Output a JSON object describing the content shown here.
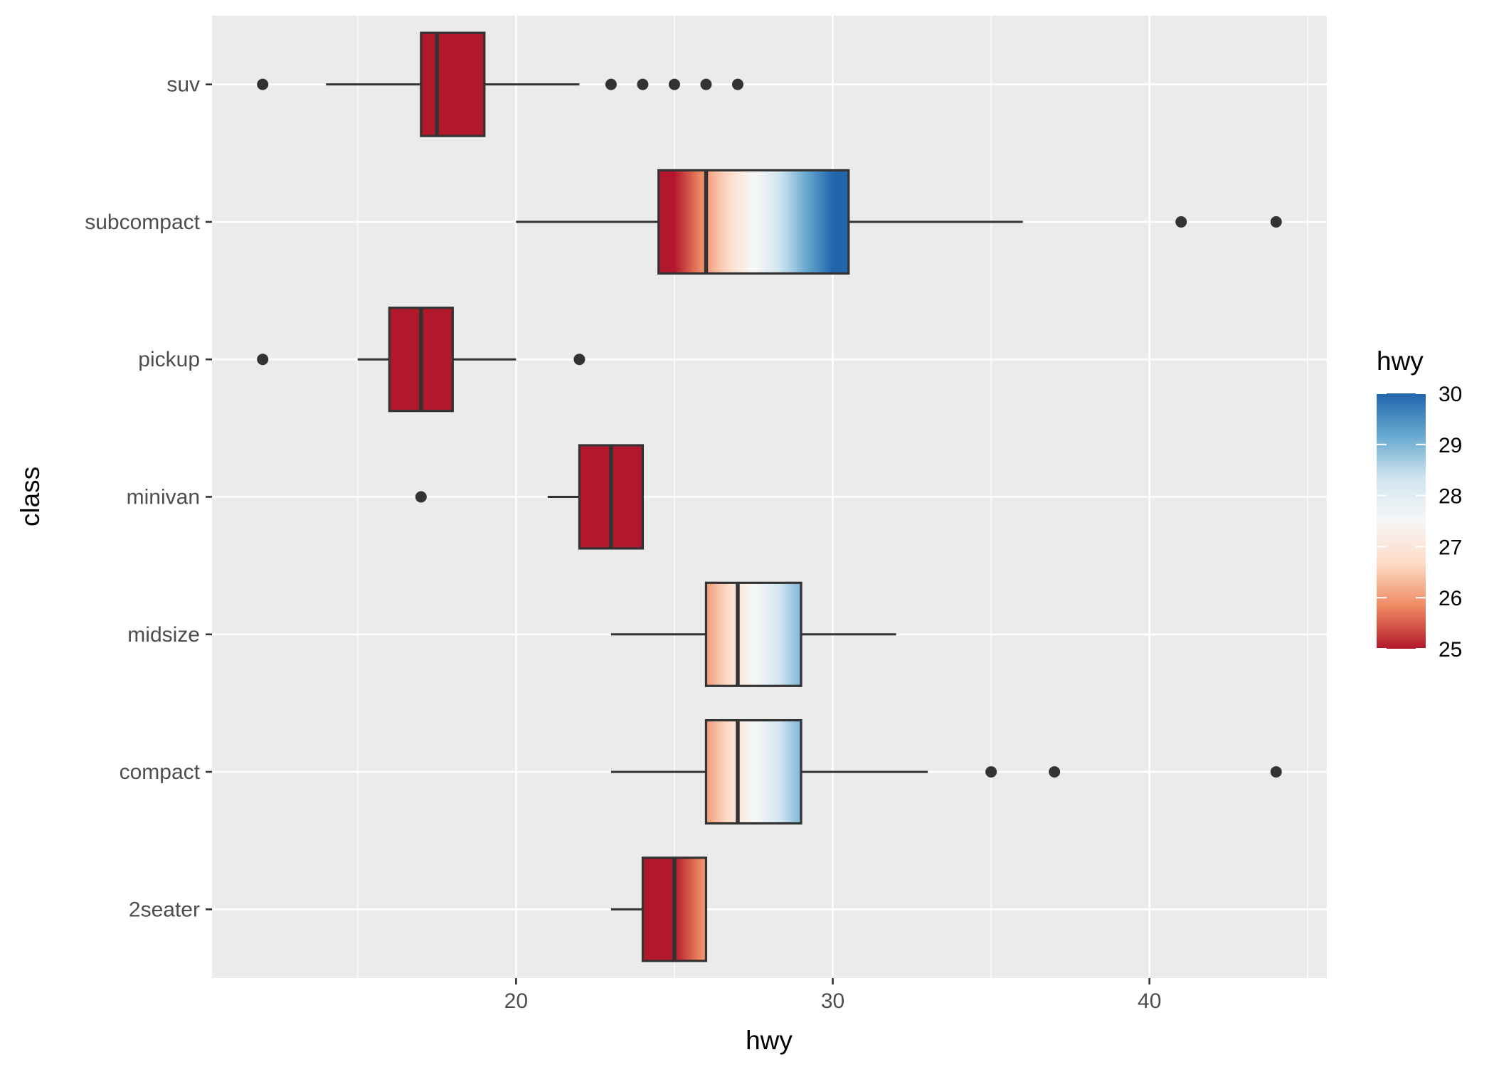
{
  "chart_data": {
    "type": "boxplot",
    "orientation": "horizontal",
    "xlabel": "hwy",
    "ylabel": "class",
    "xlim": [
      10.4,
      45.6
    ],
    "x_ticks": [
      20,
      30,
      40
    ],
    "x_tick_labels": [
      "20",
      "30",
      "40"
    ],
    "grid": true,
    "categories": [
      "2seater",
      "compact",
      "midsize",
      "minivan",
      "pickup",
      "subcompact",
      "suv"
    ],
    "boxes": [
      {
        "category": "2seater",
        "whisker_low": 23,
        "q1": 24,
        "median": 25,
        "q3": 26,
        "whisker_high": 26,
        "outliers": []
      },
      {
        "category": "compact",
        "whisker_low": 23,
        "q1": 26,
        "median": 27,
        "q3": 29,
        "whisker_high": 33,
        "outliers": [
          35,
          37,
          44
        ]
      },
      {
        "category": "midsize",
        "whisker_low": 23,
        "q1": 26,
        "median": 27,
        "q3": 29,
        "whisker_high": 32,
        "outliers": []
      },
      {
        "category": "minivan",
        "whisker_low": 21,
        "q1": 22,
        "median": 23,
        "q3": 24,
        "whisker_high": 24,
        "outliers": [
          17
        ]
      },
      {
        "category": "pickup",
        "whisker_low": 15,
        "q1": 16,
        "median": 17,
        "q3": 18,
        "whisker_high": 20,
        "outliers": [
          12,
          22
        ]
      },
      {
        "category": "subcompact",
        "whisker_low": 20,
        "q1": 24.5,
        "median": 26,
        "q3": 30.5,
        "whisker_high": 36,
        "outliers": [
          41,
          44
        ]
      },
      {
        "category": "suv",
        "whisker_low": 14,
        "q1": 17,
        "median": 17.5,
        "q3": 19,
        "whisker_high": 22,
        "outliers": [
          12,
          23,
          24,
          25,
          26,
          27
        ]
      }
    ],
    "fill": {
      "variable": "hwy",
      "gradient_by": "x",
      "low": 25,
      "high": 30,
      "oob": "squish"
    },
    "legend": {
      "title": "hwy",
      "position": "right",
      "min": 25,
      "max": 30,
      "breaks": [
        25,
        26,
        27,
        28,
        29,
        30
      ],
      "break_labels": [
        "25",
        "26",
        "27",
        "28",
        "29",
        "30"
      ]
    }
  },
  "colors": {
    "panel_background": "#ebebeb",
    "grid_line": "#ffffff",
    "box_outline": "#333333",
    "tick_text": "#4d4d4d",
    "palette": [
      "#b2182b",
      "#ef8a62",
      "#fddbc7",
      "#f7f7f7",
      "#d1e5f0",
      "#67a9cf",
      "#2166ac"
    ]
  }
}
